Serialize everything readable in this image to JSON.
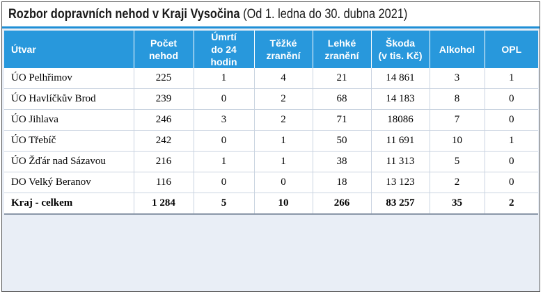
{
  "title": {
    "bold": "Rozbor dopravních nehod v Kraji Vysočina",
    "rest": " (Od 1. ledna do 30. dubna 2021)"
  },
  "columns": [
    [
      "Útvar"
    ],
    [
      "Počet",
      "nehod"
    ],
    [
      "Úmrtí",
      "do 24 hodin"
    ],
    [
      "Těžké",
      "zranění"
    ],
    [
      "Lehké",
      "zranění"
    ],
    [
      "Škoda",
      "(v tis. Kč)"
    ],
    [
      "Alkohol"
    ],
    [
      "OPL"
    ]
  ],
  "rows": [
    [
      "ÚO Pelhřimov",
      "225",
      "1",
      "4",
      "21",
      "14 861",
      "3",
      "1"
    ],
    [
      "ÚO Havlíčkův Brod",
      "239",
      "0",
      "2",
      "68",
      "14 183",
      "8",
      "0"
    ],
    [
      "ÚO Jihlava",
      "246",
      "3",
      "2",
      "71",
      "18086",
      "7",
      "0"
    ],
    [
      "ÚO Třebíč",
      "242",
      "0",
      "1",
      "50",
      "11 691",
      "10",
      "1"
    ],
    [
      "ÚO Žďár nad Sázavou",
      "216",
      "1",
      "1",
      "38",
      "11 313",
      "5",
      "0"
    ],
    [
      "DO Velký Beranov",
      "116",
      "0",
      "0",
      "18",
      "13 123",
      "2",
      "0"
    ]
  ],
  "total": [
    "Kraj - celkem",
    "1 284",
    "5",
    "10",
    "266",
    "83 257",
    "35",
    "2"
  ],
  "colors": {
    "header_bg": "#2898dc",
    "title_underline": "#1f8fd6",
    "frame_bg": "#e9eef6"
  }
}
